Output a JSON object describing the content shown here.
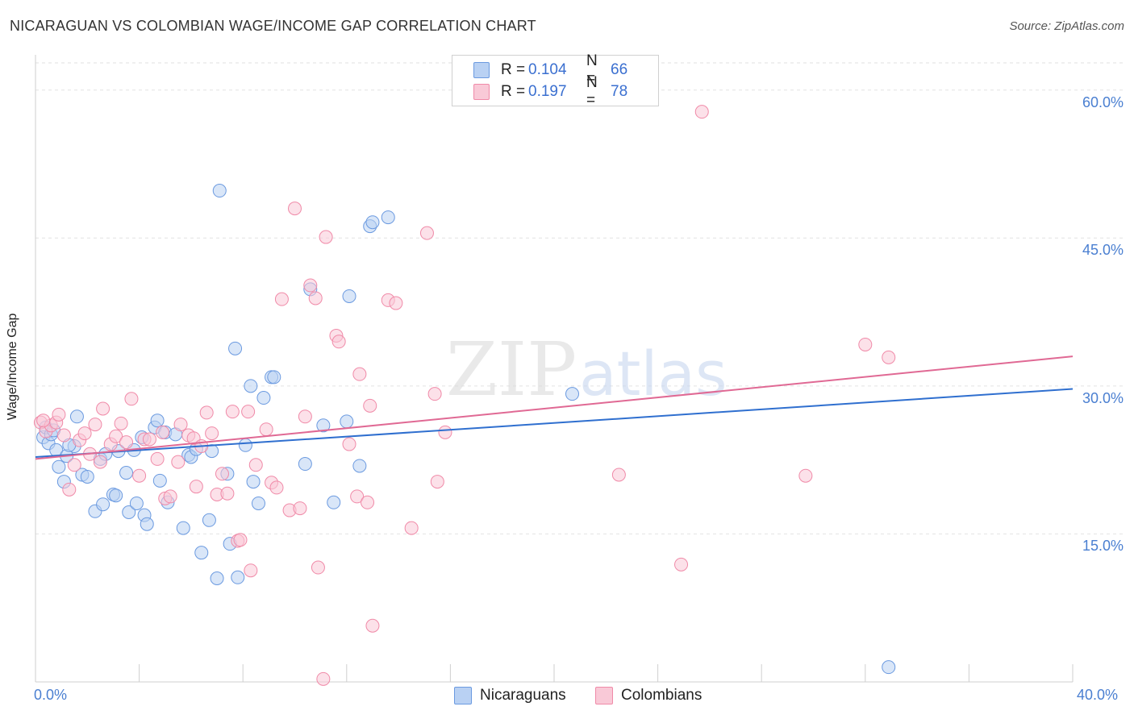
{
  "title": "NICARAGUAN VS COLOMBIAN WAGE/INCOME GAP CORRELATION CHART",
  "source": "Source: ZipAtlas.com",
  "watermark": {
    "zip": "ZIP",
    "atlas": "atlas"
  },
  "chart_data": {
    "type": "scatter",
    "title": "NICARAGUAN VS COLOMBIAN WAGE/INCOME GAP CORRELATION CHART",
    "xlabel": "",
    "ylabel": "Wage/Income Gap",
    "xlim": [
      0,
      40
    ],
    "ylim": [
      0,
      63
    ],
    "x_tick_labels": {
      "left": "0.0%",
      "right": "40.0%"
    },
    "y_ticks": [
      {
        "value": 15,
        "label": "15.0%"
      },
      {
        "value": 30,
        "label": "30.0%"
      },
      {
        "value": 45,
        "label": "45.0%"
      },
      {
        "value": 60,
        "label": "60.0%"
      }
    ],
    "legend": [
      {
        "series": "Nicaraguans",
        "r_label": "R =",
        "r": "0.104",
        "n_label": "N =",
        "n": "66"
      },
      {
        "series": "Colombians",
        "r_label": "R =",
        "r": "0.197",
        "n_label": "N =",
        "n": "78"
      }
    ],
    "series": [
      {
        "name": "Nicaraguans",
        "color": "#6b9ae0",
        "fill": "#b9d1f3",
        "trend": {
          "x": [
            0,
            40
          ],
          "y": [
            22.8,
            29.7
          ],
          "color": "#2f6fcf"
        },
        "points": [
          [
            0.3,
            24.8
          ],
          [
            0.4,
            25.8
          ],
          [
            0.5,
            24.2
          ],
          [
            0.6,
            25.1
          ],
          [
            0.8,
            23.5
          ],
          [
            0.9,
            21.8
          ],
          [
            1.1,
            20.3
          ],
          [
            1.2,
            22.9
          ],
          [
            1.5,
            23.9
          ],
          [
            1.6,
            26.9
          ],
          [
            1.8,
            21.0
          ],
          [
            2.0,
            20.8
          ],
          [
            2.3,
            17.3
          ],
          [
            2.5,
            22.6
          ],
          [
            2.6,
            18.0
          ],
          [
            2.7,
            23.1
          ],
          [
            3.0,
            19.0
          ],
          [
            3.1,
            18.9
          ],
          [
            3.2,
            23.4
          ],
          [
            3.5,
            21.2
          ],
          [
            3.6,
            17.2
          ],
          [
            3.8,
            23.5
          ],
          [
            3.9,
            18.1
          ],
          [
            4.1,
            24.8
          ],
          [
            4.2,
            16.9
          ],
          [
            4.3,
            16.0
          ],
          [
            4.6,
            25.8
          ],
          [
            4.7,
            26.5
          ],
          [
            4.8,
            20.4
          ],
          [
            5.0,
            25.3
          ],
          [
            5.1,
            18.2
          ],
          [
            5.4,
            25.1
          ],
          [
            5.7,
            15.6
          ],
          [
            5.9,
            23.0
          ],
          [
            6.0,
            22.8
          ],
          [
            6.2,
            23.6
          ],
          [
            6.4,
            13.1
          ],
          [
            6.7,
            16.4
          ],
          [
            6.8,
            23.4
          ],
          [
            7.0,
            10.5
          ],
          [
            7.1,
            49.8
          ],
          [
            7.4,
            21.1
          ],
          [
            7.5,
            14.0
          ],
          [
            7.7,
            33.8
          ],
          [
            7.8,
            10.6
          ],
          [
            8.1,
            24.0
          ],
          [
            8.3,
            30.0
          ],
          [
            8.4,
            20.3
          ],
          [
            8.6,
            18.1
          ],
          [
            8.8,
            28.8
          ],
          [
            9.1,
            30.9
          ],
          [
            9.2,
            30.9
          ],
          [
            10.4,
            22.1
          ],
          [
            10.6,
            39.8
          ],
          [
            11.1,
            26.0
          ],
          [
            11.5,
            18.2
          ],
          [
            12.0,
            26.4
          ],
          [
            12.1,
            39.1
          ],
          [
            12.5,
            21.9
          ],
          [
            12.9,
            46.2
          ],
          [
            13.0,
            46.6
          ],
          [
            13.6,
            47.1
          ],
          [
            20.7,
            29.2
          ],
          [
            32.9,
            1.5
          ],
          [
            1.3,
            24.0
          ],
          [
            0.7,
            25.5
          ]
        ]
      },
      {
        "name": "Colombians",
        "color": "#f08aa8",
        "fill": "#f9c9d7",
        "trend": {
          "x": [
            0,
            40
          ],
          "y": [
            22.6,
            33.0
          ],
          "color": "#e06994"
        },
        "points": [
          [
            0.2,
            26.3
          ],
          [
            0.4,
            25.4
          ],
          [
            0.6,
            26.0
          ],
          [
            0.8,
            26.3
          ],
          [
            0.9,
            27.1
          ],
          [
            1.1,
            25.0
          ],
          [
            1.3,
            19.5
          ],
          [
            1.5,
            22.0
          ],
          [
            1.7,
            24.5
          ],
          [
            1.9,
            25.2
          ],
          [
            2.1,
            23.1
          ],
          [
            2.3,
            26.1
          ],
          [
            2.5,
            22.3
          ],
          [
            2.6,
            27.7
          ],
          [
            2.9,
            24.1
          ],
          [
            3.1,
            24.9
          ],
          [
            3.3,
            26.2
          ],
          [
            3.5,
            24.3
          ],
          [
            3.7,
            28.7
          ],
          [
            4.0,
            20.9
          ],
          [
            4.2,
            24.6
          ],
          [
            4.4,
            24.6
          ],
          [
            4.7,
            22.6
          ],
          [
            4.9,
            25.3
          ],
          [
            5.0,
            18.6
          ],
          [
            5.2,
            18.8
          ],
          [
            5.5,
            22.3
          ],
          [
            5.6,
            26.1
          ],
          [
            5.9,
            25.0
          ],
          [
            6.1,
            24.7
          ],
          [
            6.2,
            19.8
          ],
          [
            6.4,
            23.9
          ],
          [
            6.6,
            27.3
          ],
          [
            6.8,
            25.2
          ],
          [
            7.0,
            19.0
          ],
          [
            7.2,
            21.1
          ],
          [
            7.4,
            19.1
          ],
          [
            7.6,
            27.4
          ],
          [
            7.8,
            14.3
          ],
          [
            7.9,
            14.4
          ],
          [
            8.2,
            27.4
          ],
          [
            8.3,
            11.3
          ],
          [
            8.5,
            22.0
          ],
          [
            8.9,
            25.6
          ],
          [
            9.1,
            20.2
          ],
          [
            9.3,
            19.7
          ],
          [
            9.5,
            38.8
          ],
          [
            9.8,
            17.4
          ],
          [
            10.0,
            48.0
          ],
          [
            10.2,
            17.6
          ],
          [
            10.4,
            26.9
          ],
          [
            10.6,
            40.2
          ],
          [
            10.8,
            38.9
          ],
          [
            10.9,
            11.6
          ],
          [
            11.1,
            0.3
          ],
          [
            11.2,
            45.1
          ],
          [
            11.6,
            35.1
          ],
          [
            11.7,
            34.5
          ],
          [
            12.1,
            24.1
          ],
          [
            12.4,
            18.8
          ],
          [
            12.5,
            31.2
          ],
          [
            12.8,
            18.2
          ],
          [
            12.9,
            28.0
          ],
          [
            13.0,
            5.7
          ],
          [
            13.6,
            38.7
          ],
          [
            13.9,
            38.4
          ],
          [
            14.5,
            15.6
          ],
          [
            15.1,
            45.5
          ],
          [
            15.4,
            29.2
          ],
          [
            15.5,
            20.3
          ],
          [
            15.8,
            25.3
          ],
          [
            22.5,
            21.0
          ],
          [
            24.9,
            11.9
          ],
          [
            25.7,
            57.8
          ],
          [
            29.7,
            20.9
          ],
          [
            32.0,
            34.2
          ],
          [
            32.9,
            32.9
          ],
          [
            0.3,
            26.5
          ]
        ]
      }
    ]
  },
  "bottom_legend": {
    "nicaraguans": "Nicaraguans",
    "colombians": "Colombians"
  }
}
